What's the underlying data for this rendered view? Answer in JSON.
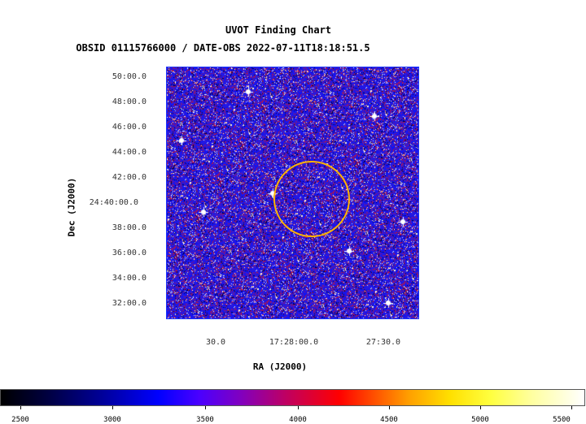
{
  "header": {
    "title": "UVOT Finding Chart",
    "subtitle": "OBSID 01115766000 / DATE-OBS 2022-07-11T18:18:51.5"
  },
  "axes": {
    "ylabel": "Dec (J2000)",
    "xlabel": "RA (J2000)",
    "dec_ticks": [
      "50:00.0",
      "48:00.0",
      "46:00.0",
      "44:00.0",
      "42:00.0",
      "24:40:00.0",
      "38:00.0",
      "36:00.0",
      "34:00.0",
      "32:00.0"
    ],
    "ra_ticks": [
      "30.0",
      "17:28:00.0",
      "27:30.0"
    ]
  },
  "colorbar": {
    "ticks": [
      "2500",
      "3000",
      "3500",
      "4000",
      "4500",
      "5000",
      "5500"
    ]
  },
  "colors": {
    "source_circle": "#ffb400",
    "background": "#2626ff"
  }
}
